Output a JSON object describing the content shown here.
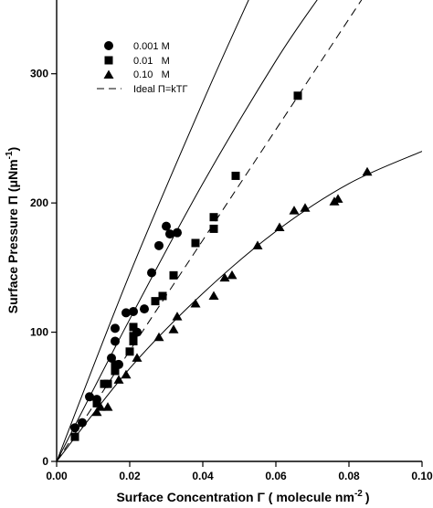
{
  "chart_data": {
    "type": "scatter",
    "xlabel": "Surface Concentration Γ ( molecule nm",
    "xlabel_sup": "-2",
    "xlabel_end": ")",
    "ylabel": "Surface Pressure Π (μNm",
    "ylabel_sup": "-1",
    "ylabel_end": ")",
    "xlim": [
      0,
      0.1
    ],
    "ylim": [
      0,
      350
    ],
    "x_ticks": [
      0.0,
      0.02,
      0.04,
      0.06,
      0.08,
      0.1
    ],
    "x_tick_labels": [
      "0.00",
      "0.02",
      "0.04",
      "0.06",
      "0.08",
      "0.10"
    ],
    "y_ticks": [
      0,
      100,
      200,
      300
    ],
    "y_tick_labels": [
      "0",
      "100",
      "200",
      "300"
    ],
    "grid": false,
    "legend_position": "top-left",
    "series": [
      {
        "name": "0.001 M",
        "marker": "circle",
        "points": [
          [
            0.005,
            26
          ],
          [
            0.007,
            30
          ],
          [
            0.009,
            50
          ],
          [
            0.011,
            48
          ],
          [
            0.015,
            80
          ],
          [
            0.016,
            93
          ],
          [
            0.016,
            103
          ],
          [
            0.017,
            75
          ],
          [
            0.019,
            115
          ],
          [
            0.021,
            116
          ],
          [
            0.022,
            100
          ],
          [
            0.024,
            118
          ],
          [
            0.026,
            146
          ],
          [
            0.028,
            167
          ],
          [
            0.03,
            182
          ],
          [
            0.031,
            176
          ],
          [
            0.033,
            177
          ]
        ]
      },
      {
        "name": "0.01   M",
        "marker": "square",
        "points": [
          [
            0.005,
            19
          ],
          [
            0.011,
            45
          ],
          [
            0.013,
            60
          ],
          [
            0.014,
            60
          ],
          [
            0.016,
            70
          ],
          [
            0.016,
            75
          ],
          [
            0.02,
            85
          ],
          [
            0.021,
            93
          ],
          [
            0.021,
            97
          ],
          [
            0.021,
            104
          ],
          [
            0.027,
            124
          ],
          [
            0.029,
            128
          ],
          [
            0.032,
            144
          ],
          [
            0.038,
            169
          ],
          [
            0.043,
            180
          ],
          [
            0.043,
            189
          ],
          [
            0.049,
            221
          ],
          [
            0.066,
            283
          ]
        ]
      },
      {
        "name": "0.10   M",
        "marker": "triangle",
        "points": [
          [
            0.011,
            38
          ],
          [
            0.012,
            42
          ],
          [
            0.014,
            42
          ],
          [
            0.017,
            63
          ],
          [
            0.019,
            67
          ],
          [
            0.022,
            80
          ],
          [
            0.028,
            96
          ],
          [
            0.032,
            102
          ],
          [
            0.033,
            112
          ],
          [
            0.038,
            122
          ],
          [
            0.043,
            128
          ],
          [
            0.046,
            142
          ],
          [
            0.048,
            144
          ],
          [
            0.055,
            167
          ],
          [
            0.061,
            181
          ],
          [
            0.065,
            194
          ],
          [
            0.068,
            196
          ],
          [
            0.076,
            201
          ],
          [
            0.077,
            203
          ],
          [
            0.085,
            224
          ]
        ]
      }
    ],
    "fitted_curves": [
      {
        "style": "solid",
        "points": [
          [
            0,
            0
          ],
          [
            0.02,
            145
          ],
          [
            0.04,
            278
          ],
          [
            0.053,
            360
          ]
        ]
      },
      {
        "style": "solid",
        "points": [
          [
            0,
            0
          ],
          [
            0.02,
            110
          ],
          [
            0.04,
            215
          ],
          [
            0.06,
            310
          ],
          [
            0.072,
            360
          ]
        ]
      },
      {
        "style": "solid",
        "points": [
          [
            0,
            0
          ],
          [
            0.02,
            72
          ],
          [
            0.04,
            130
          ],
          [
            0.06,
            178
          ],
          [
            0.08,
            215
          ],
          [
            0.1,
            240
          ]
        ]
      }
    ],
    "ideal_line": {
      "name": "Ideal Π=kTΓ",
      "style": "dashed",
      "slope": 4280
    }
  }
}
